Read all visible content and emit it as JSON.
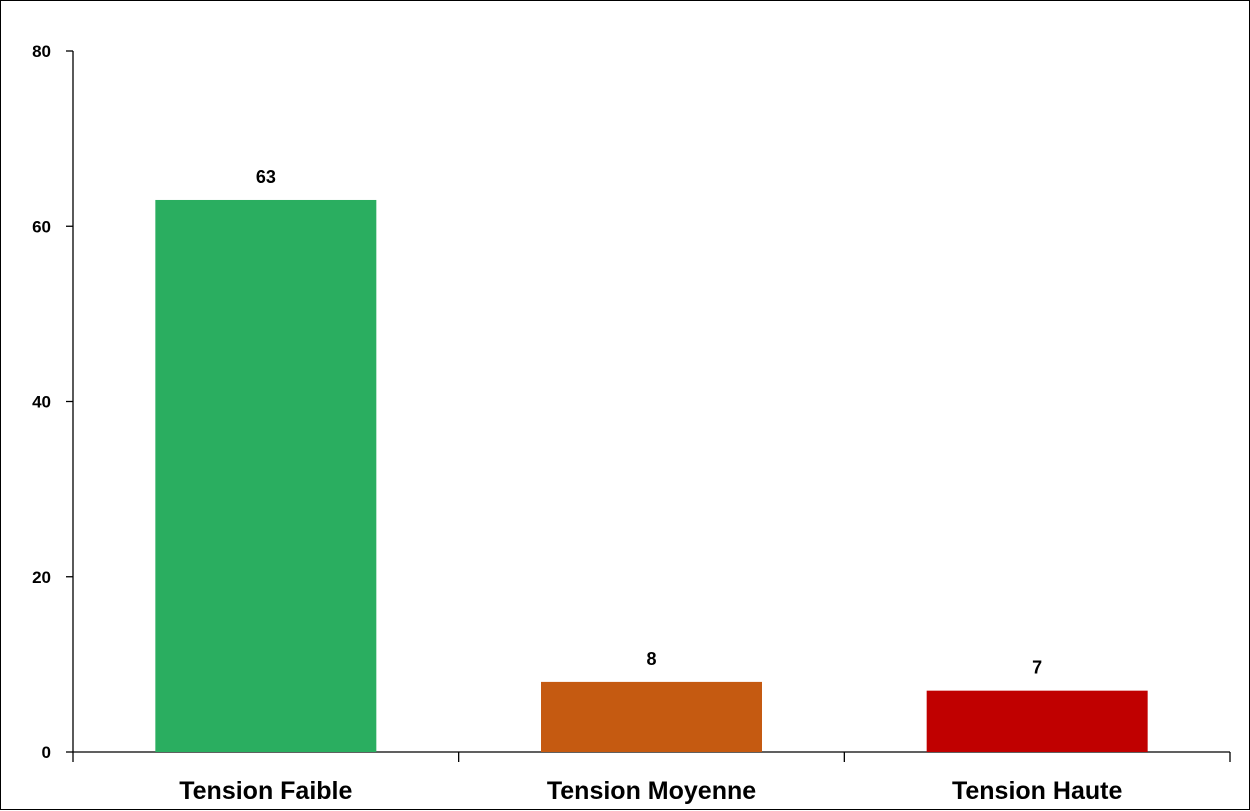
{
  "chart_data": {
    "type": "bar",
    "categories": [
      "Tension Faible",
      "Tension Moyenne",
      "Tension Haute"
    ],
    "values": [
      63,
      8,
      7
    ],
    "data_labels": [
      "63",
      "8",
      "7"
    ],
    "colors": [
      "#2aae60",
      "#c55a11",
      "#c00000"
    ],
    "ylim": [
      0,
      80
    ],
    "yticks": [
      0,
      20,
      40,
      60,
      80
    ],
    "title": "",
    "xlabel": "",
    "ylabel": "",
    "grid": false,
    "legend": "none"
  }
}
